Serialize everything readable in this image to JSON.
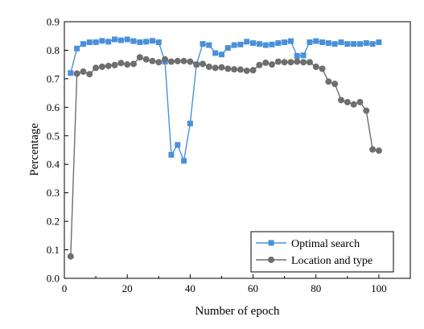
{
  "chart_data": {
    "type": "line",
    "xlabel": "Number of epoch",
    "ylabel": "Percentage",
    "xlim": [
      0,
      110
    ],
    "ylim": [
      0,
      0.9
    ],
    "x_ticks": [
      0,
      20,
      40,
      60,
      80,
      100
    ],
    "x_tick_labels": [
      "0",
      "20",
      "40",
      "60",
      "80",
      "100"
    ],
    "y_ticks": [
      0.0,
      0.1,
      0.2,
      0.3,
      0.4,
      0.5,
      0.6,
      0.7,
      0.8,
      0.9
    ],
    "y_tick_labels": [
      "0.0",
      "0.1",
      "0.2",
      "0.3",
      "0.4",
      "0.5",
      "0.6",
      "0.7",
      "0.8",
      "0.9"
    ],
    "grid": false,
    "legend": "bottom-right",
    "x": [
      2,
      4,
      6,
      8,
      10,
      12,
      14,
      16,
      18,
      20,
      22,
      24,
      26,
      28,
      30,
      32,
      34,
      36,
      38,
      40,
      42,
      44,
      46,
      48,
      50,
      52,
      54,
      56,
      58,
      60,
      62,
      64,
      66,
      68,
      70,
      72,
      74,
      76,
      78,
      80,
      82,
      84,
      86,
      88,
      90,
      92,
      94,
      96,
      98,
      100
    ],
    "series": [
      {
        "name": "Optimal search",
        "color": "#4a90d9",
        "marker": "square",
        "values": [
          0.72,
          0.806,
          0.822,
          0.828,
          0.828,
          0.833,
          0.83,
          0.838,
          0.835,
          0.838,
          0.832,
          0.828,
          0.83,
          0.833,
          0.828,
          0.76,
          0.433,
          0.468,
          0.412,
          0.543,
          0.75,
          0.822,
          0.818,
          0.79,
          0.785,
          0.808,
          0.818,
          0.82,
          0.83,
          0.825,
          0.822,
          0.818,
          0.82,
          0.825,
          0.828,
          0.832,
          0.78,
          0.782,
          0.828,
          0.832,
          0.828,
          0.825,
          0.822,
          0.828,
          0.822,
          0.822,
          0.822,
          0.825,
          0.822,
          0.828
        ]
      },
      {
        "name": "Location and type",
        "color": "#6e6e6e",
        "marker": "circle",
        "values": [
          0.077,
          0.718,
          0.725,
          0.716,
          0.738,
          0.742,
          0.745,
          0.748,
          0.755,
          0.75,
          0.752,
          0.775,
          0.768,
          0.762,
          0.758,
          0.768,
          0.76,
          0.762,
          0.762,
          0.76,
          0.75,
          0.752,
          0.742,
          0.738,
          0.74,
          0.735,
          0.733,
          0.732,
          0.728,
          0.73,
          0.748,
          0.756,
          0.75,
          0.76,
          0.758,
          0.758,
          0.76,
          0.758,
          0.758,
          0.742,
          0.735,
          0.69,
          0.682,
          0.625,
          0.618,
          0.61,
          0.618,
          0.588,
          0.452,
          0.448
        ]
      }
    ]
  }
}
